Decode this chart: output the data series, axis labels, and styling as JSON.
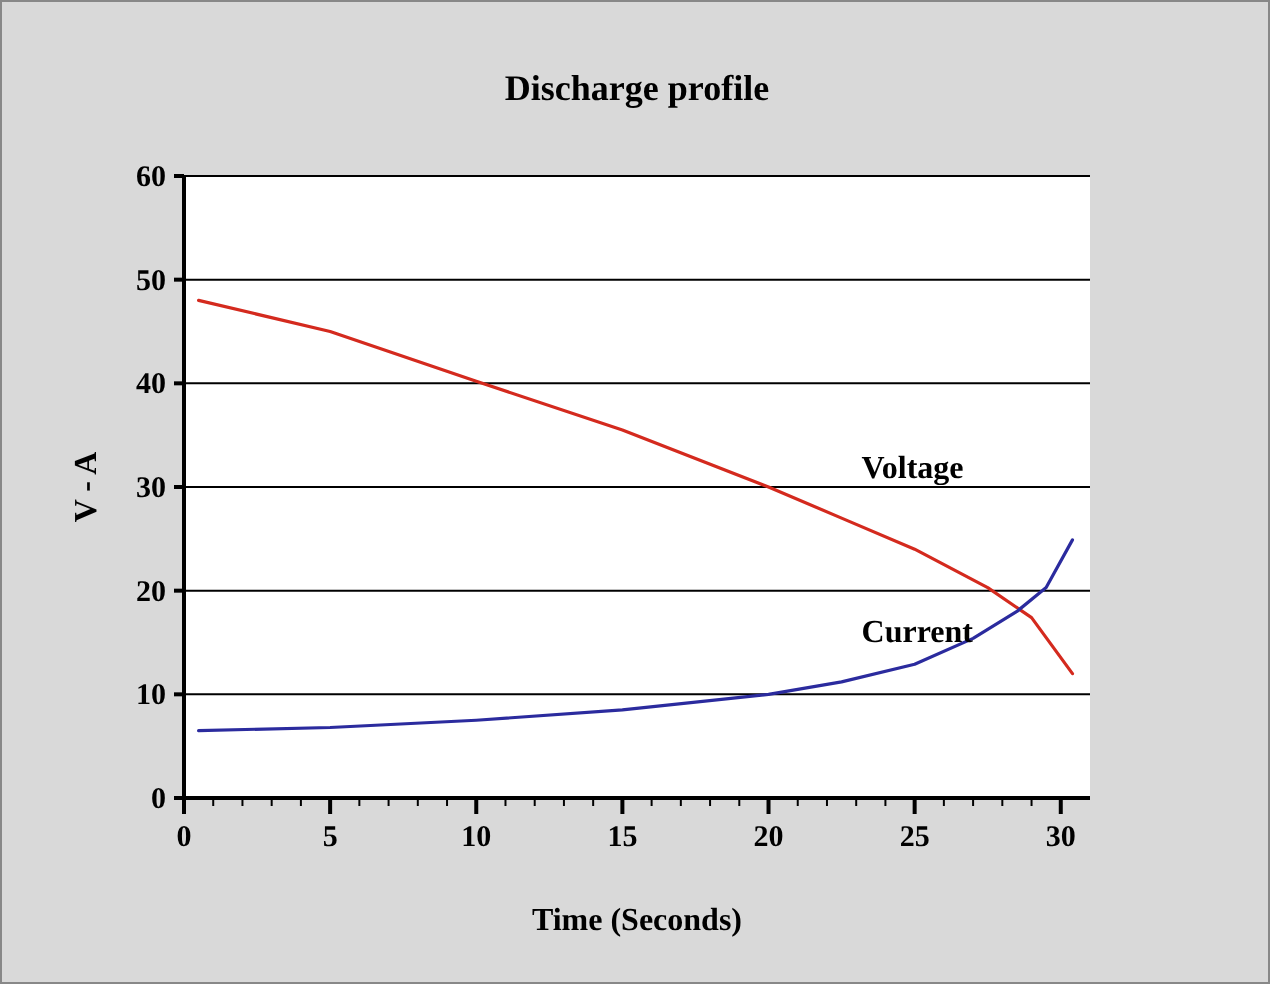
{
  "chart_data": {
    "type": "line",
    "title": "Discharge profile",
    "xlabel": "Time (Seconds)",
    "ylabel": "V - A",
    "xlim": [
      0,
      31
    ],
    "xticks": [
      0,
      {
        "value": 1,
        "label": null
      },
      {
        "value": 2,
        "label": null
      },
      {
        "value": 3,
        "label": null
      },
      {
        "value": 4,
        "label": null
      },
      5,
      {
        "value": 6,
        "label": null
      },
      {
        "value": 7,
        "label": null
      },
      {
        "value": 8,
        "label": null
      },
      {
        "value": 9,
        "label": null
      },
      10,
      {
        "value": 11,
        "label": null
      },
      {
        "value": 12,
        "label": null
      },
      {
        "value": 13,
        "label": null
      },
      {
        "value": 14,
        "label": null
      },
      15,
      {
        "value": 16,
        "label": null
      },
      {
        "value": 17,
        "label": null
      },
      {
        "value": 18,
        "label": null
      },
      {
        "value": 19,
        "label": null
      },
      20,
      {
        "value": 21,
        "label": null
      },
      {
        "value": 22,
        "label": null
      },
      {
        "value": 23,
        "label": null
      },
      {
        "value": 24,
        "label": null
      },
      25,
      {
        "value": 26,
        "label": null
      },
      {
        "value": 27,
        "label": null
      },
      {
        "value": 28,
        "label": null
      },
      {
        "value": 29,
        "label": null
      },
      30
    ],
    "ylim": [
      0,
      60
    ],
    "yticks": [
      0,
      10,
      20,
      30,
      40,
      50,
      60
    ],
    "grid": "y",
    "series": [
      {
        "name": "Voltage",
        "color": "#d42a1e",
        "x": [
          0.5,
          5,
          10,
          15,
          20,
          22.5,
          25,
          27.5,
          29,
          30.4
        ],
        "values": [
          48,
          45,
          40.2,
          35.5,
          30,
          27,
          24,
          20.3,
          17.4,
          12
        ]
      },
      {
        "name": "Current",
        "color": "#2b2b9e",
        "x": [
          0.5,
          5,
          10,
          15,
          20,
          22.5,
          25,
          27,
          28.5,
          29.5,
          30.4
        ],
        "values": [
          6.5,
          6.8,
          7.5,
          8.5,
          10,
          11.2,
          12.9,
          15.4,
          18,
          20.3,
          24.9
        ]
      }
    ]
  }
}
